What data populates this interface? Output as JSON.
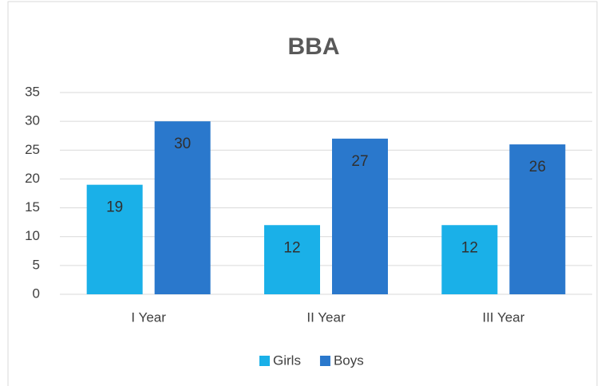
{
  "chart_data": {
    "type": "bar",
    "title": "BBA",
    "categories": [
      "I Year",
      "II Year",
      "III Year"
    ],
    "series": [
      {
        "name": "Girls",
        "color": "#1ab0e8",
        "values": [
          19,
          12,
          12
        ]
      },
      {
        "name": "Boys",
        "color": "#2a78cc",
        "values": [
          30,
          27,
          26
        ]
      }
    ],
    "ylim": [
      0,
      35
    ],
    "yticks": [
      0,
      5,
      10,
      15,
      20,
      25,
      30,
      35
    ],
    "grid": true,
    "legend": "bottom"
  }
}
